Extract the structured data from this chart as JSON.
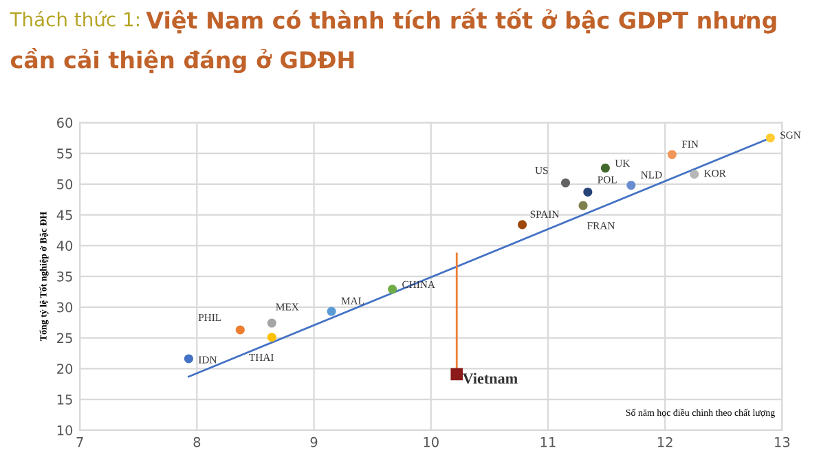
{
  "chart_data": {
    "type": "scatter",
    "title": "Thách thức 1:",
    "subtitle": "Việt Nam có thành tích rất tốt ở bậc GDPT nhưng\ncần cải thiện đáng ở GDĐH",
    "xlabel": "Số năm học điều chỉnh theo chất lượng",
    "ylabel": "Tổng tỷ lệ Tốt nghiệp ở Bậc ĐH",
    "xlim": [
      7,
      13
    ],
    "xticks": [
      7,
      8,
      9,
      10,
      11,
      12,
      13
    ],
    "ylim": [
      10,
      60
    ],
    "yticks": [
      10,
      15,
      20,
      25,
      30,
      35,
      40,
      45,
      50,
      55,
      60
    ],
    "grid": true,
    "legend": false,
    "marker": "circle",
    "series": [
      {
        "name": "IDN",
        "color": "#4472c4",
        "x": [
          7.93
        ],
        "values": [
          21.6
        ]
      },
      {
        "name": "PHIL",
        "color": "#ed7d31",
        "x": [
          8.37
        ],
        "values": [
          26.3
        ]
      },
      {
        "name": "MEX",
        "color": "#a5a5a5",
        "x": [
          8.64
        ],
        "values": [
          27.4
        ]
      },
      {
        "name": "THAI",
        "color": "#ffc000",
        "x": [
          8.64
        ],
        "values": [
          25.1
        ]
      },
      {
        "name": "MAL",
        "color": "#5b9bd5",
        "x": [
          9.15
        ],
        "values": [
          29.3
        ]
      },
      {
        "name": "CHINA",
        "color": "#70ad47",
        "x": [
          9.67
        ],
        "values": [
          32.9
        ]
      },
      {
        "name": "SPAIN",
        "color": "#9e480e",
        "x": [
          10.78
        ],
        "values": [
          43.4
        ]
      },
      {
        "name": "US",
        "color": "#636363",
        "x": [
          11.15
        ],
        "values": [
          50.2
        ]
      },
      {
        "name": "POL",
        "color": "#264478",
        "x": [
          11.34
        ],
        "values": [
          48.7
        ]
      },
      {
        "name": "UK",
        "color": "#43682b",
        "x": [
          11.49
        ],
        "values": [
          52.6
        ]
      },
      {
        "name": "FRAN",
        "color": "#7f7f4f",
        "x": [
          11.3
        ],
        "values": [
          46.5
        ]
      },
      {
        "name": "NLD",
        "color": "#698ed0",
        "x": [
          11.71
        ],
        "values": [
          49.8
        ]
      },
      {
        "name": "FIN",
        "color": "#f1975a",
        "x": [
          12.06
        ],
        "values": [
          54.8
        ]
      },
      {
        "name": "KOR",
        "color": "#b7b7b7",
        "x": [
          12.25
        ],
        "values": [
          51.6
        ]
      },
      {
        "name": "SGN",
        "color": "#ffcd33",
        "x": [
          12.9
        ],
        "values": [
          57.5
        ]
      },
      {
        "name": "Vietnam",
        "color": "#8b1a1a",
        "x": [
          10.22
        ],
        "values": [
          19.1
        ],
        "marker": "square"
      },
      {
        "type": "line",
        "color": "#4472c4",
        "x": [
          7.93,
          12.9
        ],
        "values": [
          18.7,
          57.5
        ],
        "marker": "none"
      },
      {
        "type": "line",
        "color": "#ed7d31",
        "x": [
          10.22,
          10.22
        ],
        "values": [
          38.7,
          19.8
        ],
        "marker": "none"
      }
    ]
  }
}
